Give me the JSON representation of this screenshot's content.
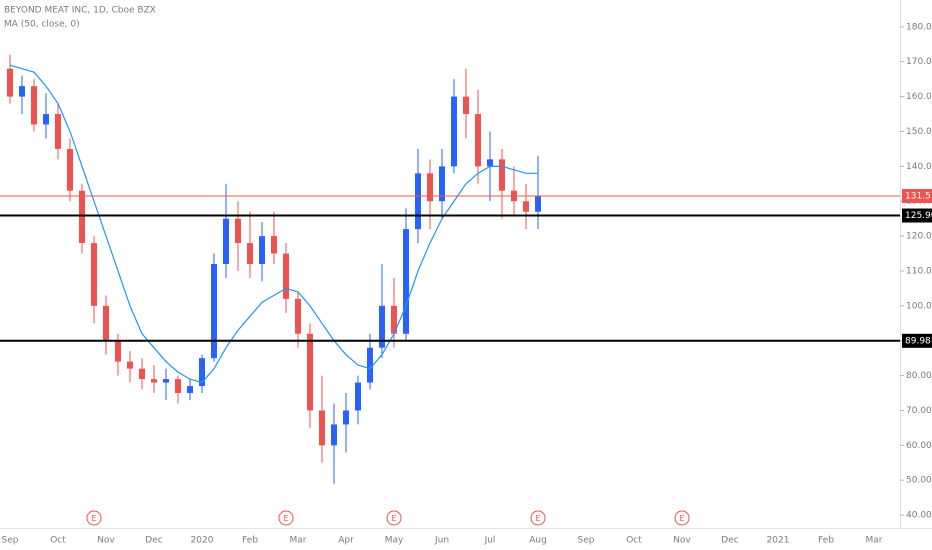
{
  "chart_data": {
    "type": "candlestick",
    "title": "BEYOND MEAT INC, 1D, Cboe BZX",
    "subtitle": "MA (50, close, 0)",
    "categories": [
      "Sep",
      null,
      null,
      null,
      "Oct",
      null,
      null,
      null,
      "Nov",
      null,
      null,
      null,
      "Dec",
      null,
      null,
      null,
      "2020",
      null,
      null,
      null,
      "Feb",
      null,
      null,
      null,
      "Mar",
      null,
      null,
      null,
      "Apr",
      null,
      null,
      null,
      "May",
      null,
      null,
      null,
      "Jun",
      null,
      null,
      null,
      "Jul",
      null,
      null,
      null,
      "Aug",
      null,
      null,
      null,
      "Sep",
      null,
      null,
      null,
      "Oct",
      null,
      null,
      null,
      "Nov",
      null,
      null,
      null,
      "Dec",
      null,
      null,
      null,
      "2021",
      null,
      null,
      null,
      "Feb",
      null,
      null,
      null,
      "Mar"
    ],
    "open": [
      168,
      160,
      163,
      152,
      155,
      145,
      133,
      118,
      100,
      90,
      84,
      82,
      79,
      78,
      79,
      75,
      77,
      85,
      112,
      125,
      118,
      112,
      120,
      115,
      102,
      92,
      70,
      60,
      66,
      70,
      78,
      88,
      100,
      92,
      122,
      138,
      130,
      140,
      160,
      155,
      140,
      142,
      133,
      130,
      127,
      null,
      null,
      null,
      null,
      null,
      null,
      null,
      null,
      null,
      null,
      null,
      null,
      null,
      null,
      null,
      null,
      null,
      null,
      null,
      null,
      null,
      null,
      null,
      null,
      null,
      null,
      null,
      null
    ],
    "high": [
      172,
      166,
      165,
      161,
      158,
      148,
      135,
      120,
      103,
      92,
      87,
      85,
      83,
      82,
      80,
      79,
      86,
      115,
      135,
      130,
      127,
      124,
      127,
      118,
      104,
      95,
      80,
      72,
      75,
      80,
      92,
      112,
      108,
      128,
      145,
      142,
      145,
      165,
      168,
      162,
      150,
      145,
      140,
      135,
      143,
      null,
      null,
      null,
      null,
      null,
      null,
      null,
      null,
      null,
      null,
      null,
      null,
      null,
      null,
      null,
      null,
      null,
      null,
      null,
      null,
      null,
      null,
      null,
      null,
      null,
      null,
      null,
      null
    ],
    "low": [
      158,
      155,
      150,
      148,
      142,
      130,
      115,
      95,
      86,
      80,
      78,
      76,
      75,
      73,
      72,
      73,
      75,
      84,
      108,
      110,
      108,
      107,
      112,
      98,
      88,
      65,
      55,
      49,
      58,
      66,
      76,
      85,
      88,
      90,
      118,
      122,
      125,
      138,
      148,
      135,
      130,
      125,
      126,
      122,
      122,
      null,
      null,
      null,
      null,
      null,
      null,
      null,
      null,
      null,
      null,
      null,
      null,
      null,
      null,
      null,
      null,
      null,
      null,
      null,
      null,
      null,
      null,
      null,
      null,
      null,
      null,
      null,
      null
    ],
    "close": [
      160,
      163,
      152,
      155,
      145,
      133,
      118,
      100,
      90,
      84,
      82,
      79,
      78,
      79,
      75,
      77,
      85,
      112,
      125,
      118,
      112,
      120,
      115,
      102,
      92,
      70,
      60,
      66,
      70,
      78,
      88,
      100,
      92,
      122,
      138,
      130,
      140,
      160,
      155,
      140,
      142,
      133,
      130,
      127,
      131.51,
      null,
      null,
      null,
      null,
      null,
      null,
      null,
      null,
      null,
      null,
      null,
      null,
      null,
      null,
      null,
      null,
      null,
      null,
      null,
      null,
      null,
      null,
      null,
      null,
      null,
      null,
      null,
      null
    ],
    "up_color": "#2962ff",
    "down_color": "#ef5350",
    "ma": {
      "color": "#2196f3",
      "values": [
        169,
        168,
        167,
        163,
        158,
        150,
        140,
        130,
        120,
        110,
        100,
        92,
        88,
        84,
        81,
        79,
        78,
        82,
        88,
        93,
        97,
        101,
        103,
        105,
        104,
        100,
        95,
        90,
        86,
        83,
        82,
        86,
        92,
        100,
        110,
        118,
        125,
        130,
        135,
        138,
        140,
        140,
        139,
        138,
        138,
        null,
        null,
        null,
        null,
        null,
        null,
        null,
        null,
        null,
        null,
        null,
        null,
        null,
        null,
        null,
        null,
        null,
        null,
        null,
        null,
        null,
        null,
        null,
        null,
        null,
        null,
        null,
        null
      ]
    },
    "hlines": [
      {
        "value": 131.51,
        "color": "#ef5350"
      },
      {
        "value": 125.9,
        "label": "125.90",
        "color": "#000000"
      },
      {
        "value": 89.98,
        "color": "#000000"
      }
    ],
    "events": [
      {
        "label": "E",
        "category": 7
      },
      {
        "label": "E",
        "category": 23
      },
      {
        "label": "E",
        "category": 32
      },
      {
        "label": "E",
        "category": 44
      },
      {
        "label": "E",
        "category": 56
      }
    ],
    "ylim": [
      36.3,
      187.7
    ],
    "yticks": [
      {
        "value": 40,
        "label": "40.00"
      },
      {
        "value": 50,
        "label": "50.00"
      },
      {
        "value": 60,
        "label": "60.00"
      },
      {
        "value": 70,
        "label": "70.00"
      },
      {
        "value": 80,
        "label": "80.00"
      },
      {
        "value": 90,
        "label": "90.00"
      },
      {
        "value": 100,
        "label": "100.00"
      },
      {
        "value": 110,
        "label": "110.00"
      },
      {
        "value": 120,
        "label": "120.00"
      },
      {
        "value": 130,
        "label": "130.00"
      },
      {
        "value": 140,
        "label": "140.00"
      },
      {
        "value": 150,
        "label": "150.00"
      },
      {
        "value": 160,
        "label": "160.00"
      },
      {
        "value": 170,
        "label": "170.00"
      },
      {
        "value": 180,
        "label": "180.00"
      }
    ],
    "grid": false
  }
}
